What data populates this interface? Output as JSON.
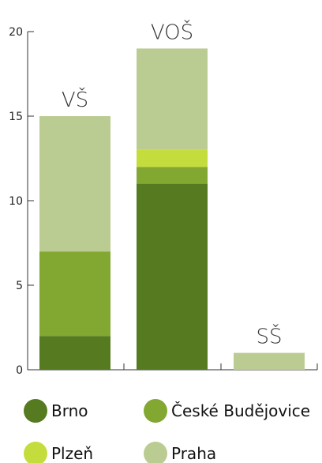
{
  "chart_data": {
    "type": "bar",
    "stacked": true,
    "categories": [
      "VŠ",
      "VOŠ",
      "SŠ"
    ],
    "series": [
      {
        "name": "Brno",
        "values": [
          2,
          11,
          0
        ],
        "color": "#557a1f"
      },
      {
        "name": "České Budějovice",
        "values": [
          5,
          1,
          0
        ],
        "color": "#82a832"
      },
      {
        "name": "Plzeň",
        "values": [
          0,
          1,
          0
        ],
        "color": "#c5dd3c"
      },
      {
        "name": "Praha",
        "values": [
          8,
          6,
          1
        ],
        "color": "#bbcc92"
      }
    ],
    "yticks": [
      0,
      5,
      10,
      15,
      20
    ],
    "ylim": [
      0,
      20
    ],
    "legend_position": "bottom",
    "grid": false
  }
}
